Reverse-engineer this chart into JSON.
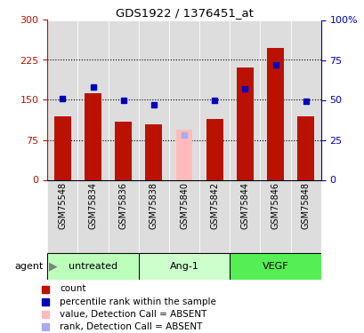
{
  "title": "GDS1922 / 1376451_at",
  "samples": [
    "GSM75548",
    "GSM75834",
    "GSM75836",
    "GSM75838",
    "GSM75840",
    "GSM75842",
    "GSM75844",
    "GSM75846",
    "GSM75848"
  ],
  "count_values": [
    120,
    162,
    110,
    105,
    null,
    115,
    210,
    248,
    120
  ],
  "count_absent": [
    null,
    null,
    null,
    null,
    95,
    null,
    null,
    null,
    null
  ],
  "rank_values": [
    51,
    58,
    50,
    47,
    null,
    50,
    57,
    72,
    49
  ],
  "rank_absent": [
    null,
    null,
    null,
    null,
    28,
    null,
    null,
    null,
    null
  ],
  "left_ylim": [
    0,
    300
  ],
  "right_ylim": [
    0,
    100
  ],
  "left_yticks": [
    0,
    75,
    150,
    225,
    300
  ],
  "right_yticks": [
    0,
    25,
    50,
    75,
    100
  ],
  "right_yticklabels": [
    "0",
    "25",
    "50",
    "75",
    "100%"
  ],
  "groups": [
    {
      "label": "untreated",
      "start": 0,
      "end": 2,
      "color": "#bbffbb"
    },
    {
      "label": "Ang-1",
      "start": 3,
      "end": 5,
      "color": "#ccffcc"
    },
    {
      "label": "VEGF",
      "start": 6,
      "end": 8,
      "color": "#55ee55"
    }
  ],
  "bar_color_red": "#bb1100",
  "bar_color_pink": "#ffbbbb",
  "dot_color_blue": "#0000bb",
  "dot_color_lightblue": "#aaaaee",
  "agent_label": "agent",
  "bar_width": 0.55,
  "legend_items": [
    {
      "label": "count",
      "color": "#bb1100"
    },
    {
      "label": "percentile rank within the sample",
      "color": "#0000bb"
    },
    {
      "label": "value, Detection Call = ABSENT",
      "color": "#ffbbbb"
    },
    {
      "label": "rank, Detection Call = ABSENT",
      "color": "#aaaaee"
    }
  ]
}
